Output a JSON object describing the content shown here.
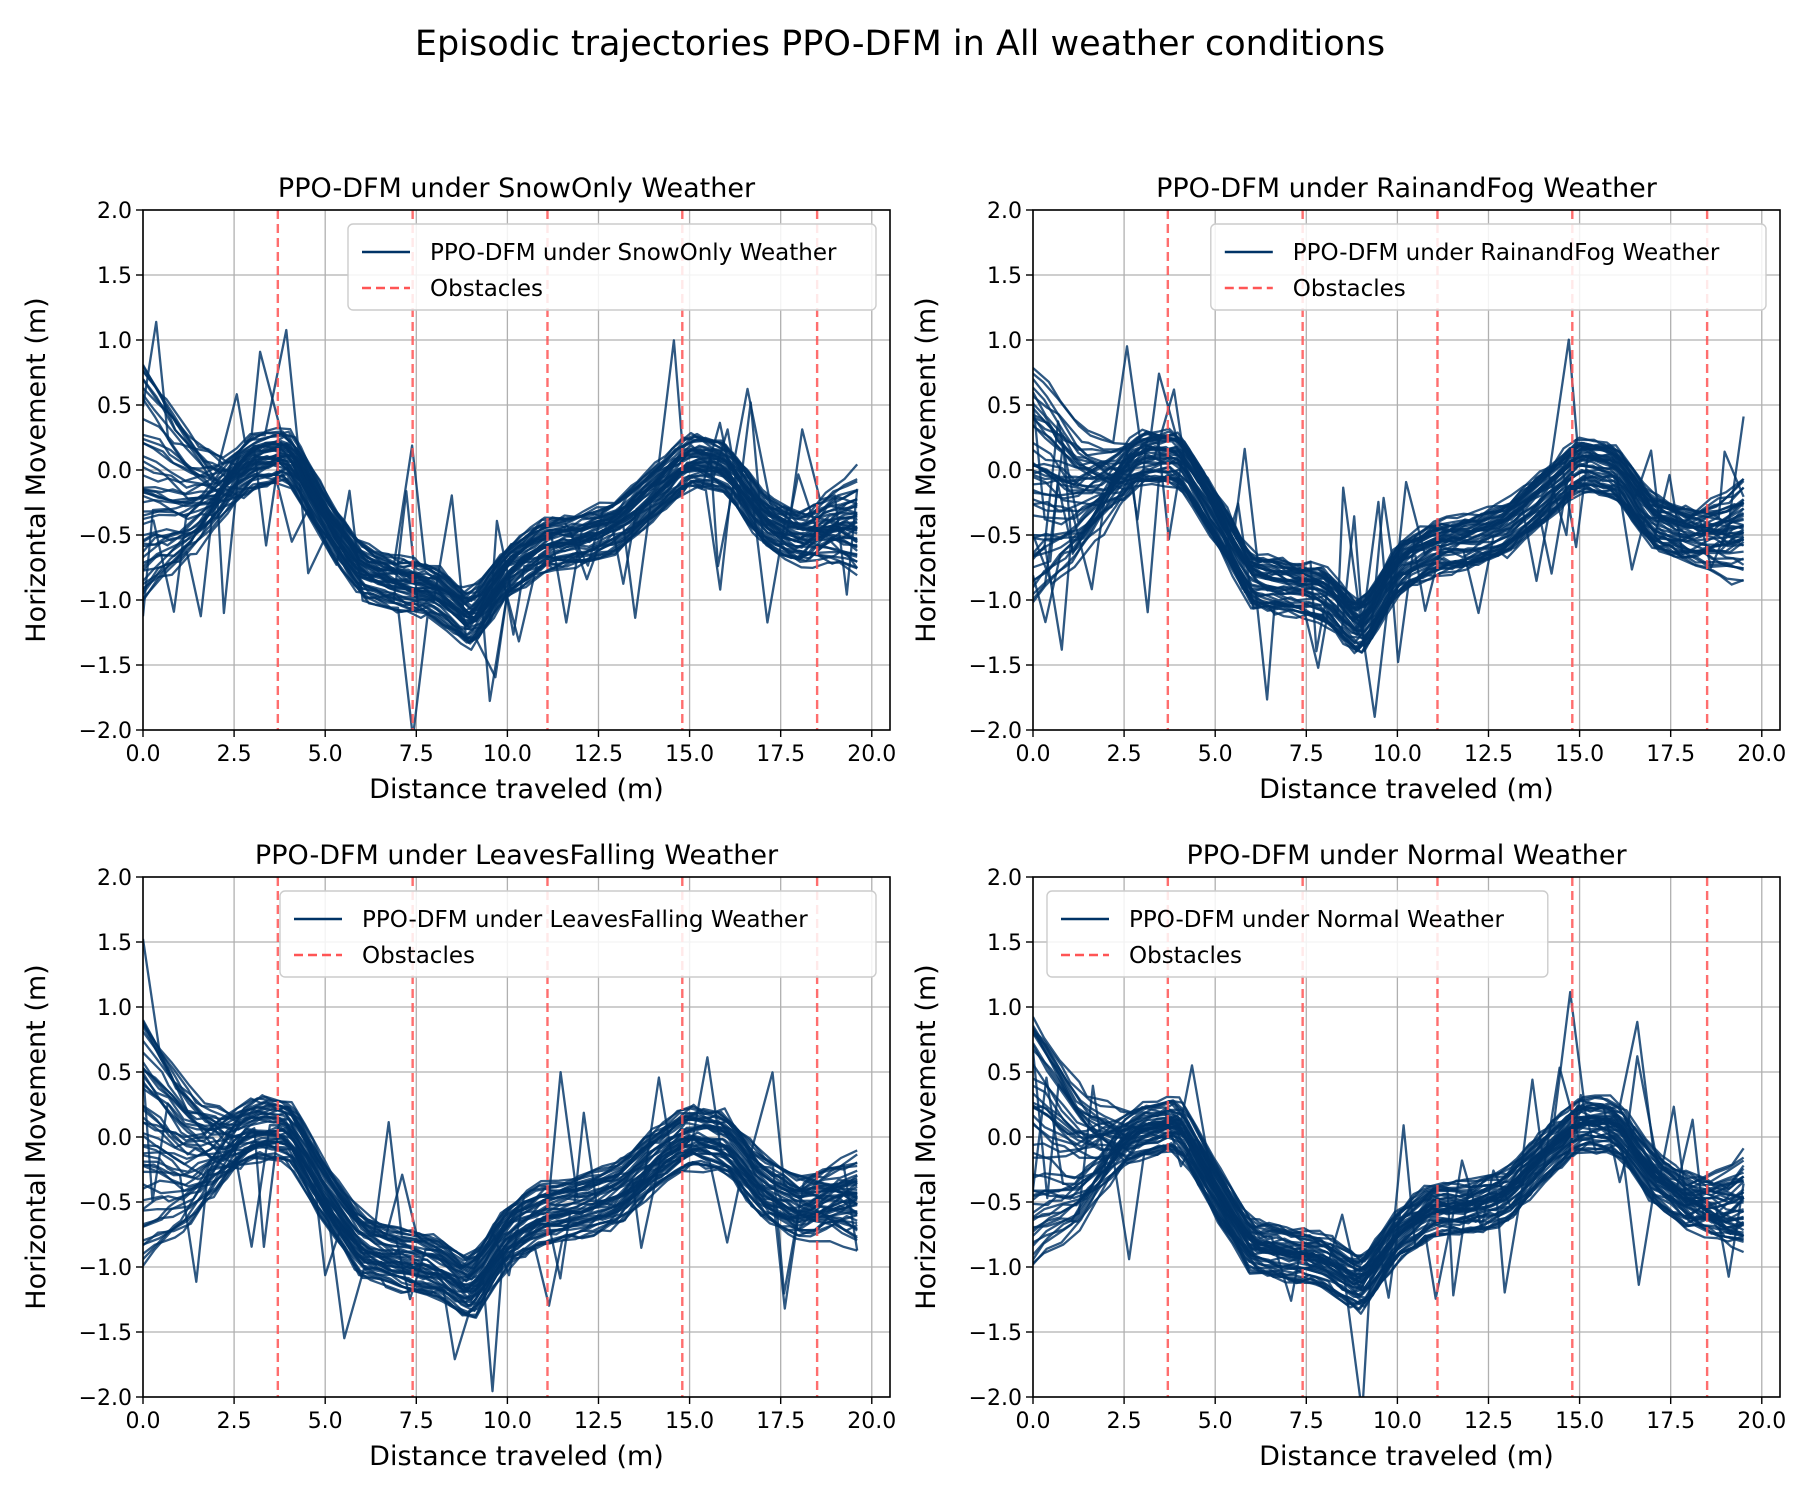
{
  "figure": {
    "suptitle": "Episodic trajectories PPO-DFM in All weather conditions"
  },
  "colors": {
    "trajectory": "#003366",
    "obstacle": "#ff5555",
    "grid": "#b0b0b0"
  },
  "chart_data": [
    {
      "type": "line",
      "title": "PPO-DFM under SnowOnly Weather",
      "xlabel": "Distance traveled (m)",
      "ylabel": "Horizontal Movement (m)",
      "xlim": [
        0,
        20.5
      ],
      "ylim": [
        -2,
        2
      ],
      "xticks": [
        "0.0",
        "2.5",
        "5.0",
        "7.5",
        "10.0",
        "12.5",
        "15.0",
        "17.5",
        "20.0"
      ],
      "yticks": [
        "−2.0",
        "−1.5",
        "−1.0",
        "−0.5",
        "0.0",
        "0.5",
        "1.0",
        "1.5",
        "2.0"
      ],
      "grid": true,
      "legend": {
        "position": "upper-right",
        "entries": [
          "PPO-DFM under SnowOnly Weather",
          "Obstacles"
        ]
      },
      "obstacles_x": [
        3.7,
        7.4,
        11.1,
        14.8,
        18.5
      ],
      "trajectory_count": 50,
      "spread": 0.22,
      "mean_path": {
        "x": [
          0,
          1,
          2,
          3,
          4,
          5,
          6,
          7,
          8,
          9,
          10,
          11,
          12,
          13,
          14,
          15,
          16,
          17,
          18,
          19,
          19.6
        ],
        "y": [
          -0.2,
          -0.4,
          -0.2,
          0.05,
          0.1,
          -0.4,
          -0.8,
          -0.9,
          -0.95,
          -1.2,
          -0.8,
          -0.6,
          -0.55,
          -0.45,
          -0.2,
          0.05,
          0.0,
          -0.4,
          -0.55,
          -0.45,
          -0.45
        ]
      }
    },
    {
      "type": "line",
      "title": "PPO-DFM under RainandFog Weather",
      "xlabel": "Distance traveled (m)",
      "ylabel": "Horizontal Movement (m)",
      "xlim": [
        0,
        20.5
      ],
      "ylim": [
        -2,
        2
      ],
      "xticks": [
        "0.0",
        "2.5",
        "5.0",
        "7.5",
        "10.0",
        "12.5",
        "15.0",
        "17.5",
        "20.0"
      ],
      "yticks": [
        "−2.0",
        "−1.5",
        "−1.0",
        "−0.5",
        "0.0",
        "0.5",
        "1.0",
        "1.5",
        "2.0"
      ],
      "grid": true,
      "legend": {
        "position": "upper-right",
        "entries": [
          "PPO-DFM under RainandFog Weather",
          "Obstacles"
        ]
      },
      "obstacles_x": [
        3.7,
        7.4,
        11.1,
        14.8,
        18.5
      ],
      "trajectory_count": 50,
      "spread": 0.2,
      "mean_path": {
        "x": [
          0,
          1,
          2,
          3,
          4,
          5,
          6,
          7,
          8,
          9,
          10,
          11,
          12,
          13,
          14,
          15,
          16,
          17,
          18,
          19,
          19.5
        ],
        "y": [
          -0.2,
          -0.35,
          -0.1,
          0.1,
          0.1,
          -0.35,
          -0.85,
          -0.9,
          -0.95,
          -1.25,
          -0.75,
          -0.6,
          -0.55,
          -0.45,
          -0.2,
          0.05,
          0.0,
          -0.4,
          -0.5,
          -0.5,
          -0.45
        ]
      }
    },
    {
      "type": "line",
      "title": "PPO-DFM under LeavesFalling Weather",
      "xlabel": "Distance traveled (m)",
      "ylabel": "Horizontal Movement (m)",
      "xlim": [
        0,
        20.5
      ],
      "ylim": [
        -2,
        2
      ],
      "xticks": [
        "0.0",
        "2.5",
        "5.0",
        "7.5",
        "10.0",
        "12.5",
        "15.0",
        "17.5",
        "20.0"
      ],
      "yticks": [
        "−2.0",
        "−1.5",
        "−1.0",
        "−0.5",
        "0.0",
        "0.5",
        "1.0",
        "1.5",
        "2.0"
      ],
      "grid": true,
      "legend": {
        "position": "upper-right",
        "entries": [
          "PPO-DFM under LeavesFalling Weather",
          "Obstacles"
        ]
      },
      "obstacles_x": [
        3.7,
        7.4,
        11.1,
        14.8,
        18.5
      ],
      "trajectory_count": 50,
      "spread": 0.24,
      "mean_path": {
        "x": [
          0,
          1,
          2,
          3,
          4,
          5,
          6,
          7,
          8,
          9,
          10,
          11,
          12,
          13,
          14,
          15,
          16,
          17,
          18,
          19,
          19.6
        ],
        "y": [
          -0.2,
          -0.4,
          -0.15,
          0.05,
          0.05,
          -0.45,
          -0.85,
          -0.95,
          -1.0,
          -1.2,
          -0.75,
          -0.6,
          -0.55,
          -0.45,
          -0.2,
          0.0,
          -0.05,
          -0.4,
          -0.55,
          -0.5,
          -0.5
        ]
      }
    },
    {
      "type": "line",
      "title": "PPO-DFM under Normal Weather",
      "xlabel": "Distance traveled (m)",
      "ylabel": "Horizontal Movement (m)",
      "xlim": [
        0,
        20.5
      ],
      "ylim": [
        -2,
        2
      ],
      "xticks": [
        "0.0",
        "2.5",
        "5.0",
        "7.5",
        "10.0",
        "12.5",
        "15.0",
        "17.5",
        "20.0"
      ],
      "yticks": [
        "−2.0",
        "−1.5",
        "−1.0",
        "−0.5",
        "0.0",
        "0.5",
        "1.0",
        "1.5",
        "2.0"
      ],
      "grid": true,
      "legend": {
        "position": "upper-left",
        "entries": [
          "PPO-DFM under Normal Weather",
          "Obstacles"
        ]
      },
      "obstacles_x": [
        3.7,
        7.4,
        11.1,
        14.8,
        18.5
      ],
      "trajectory_count": 50,
      "spread": 0.2,
      "mean_path": {
        "x": [
          0,
          1,
          2,
          3,
          4,
          5,
          6,
          7,
          8,
          9,
          10,
          11,
          12,
          13,
          14,
          15,
          16,
          17,
          18,
          19,
          19.5
        ],
        "y": [
          -0.2,
          -0.4,
          -0.1,
          0.05,
          0.1,
          -0.4,
          -0.85,
          -0.9,
          -0.95,
          -1.15,
          -0.75,
          -0.55,
          -0.55,
          -0.45,
          -0.15,
          0.1,
          0.1,
          -0.3,
          -0.5,
          -0.55,
          -0.5
        ]
      }
    }
  ]
}
